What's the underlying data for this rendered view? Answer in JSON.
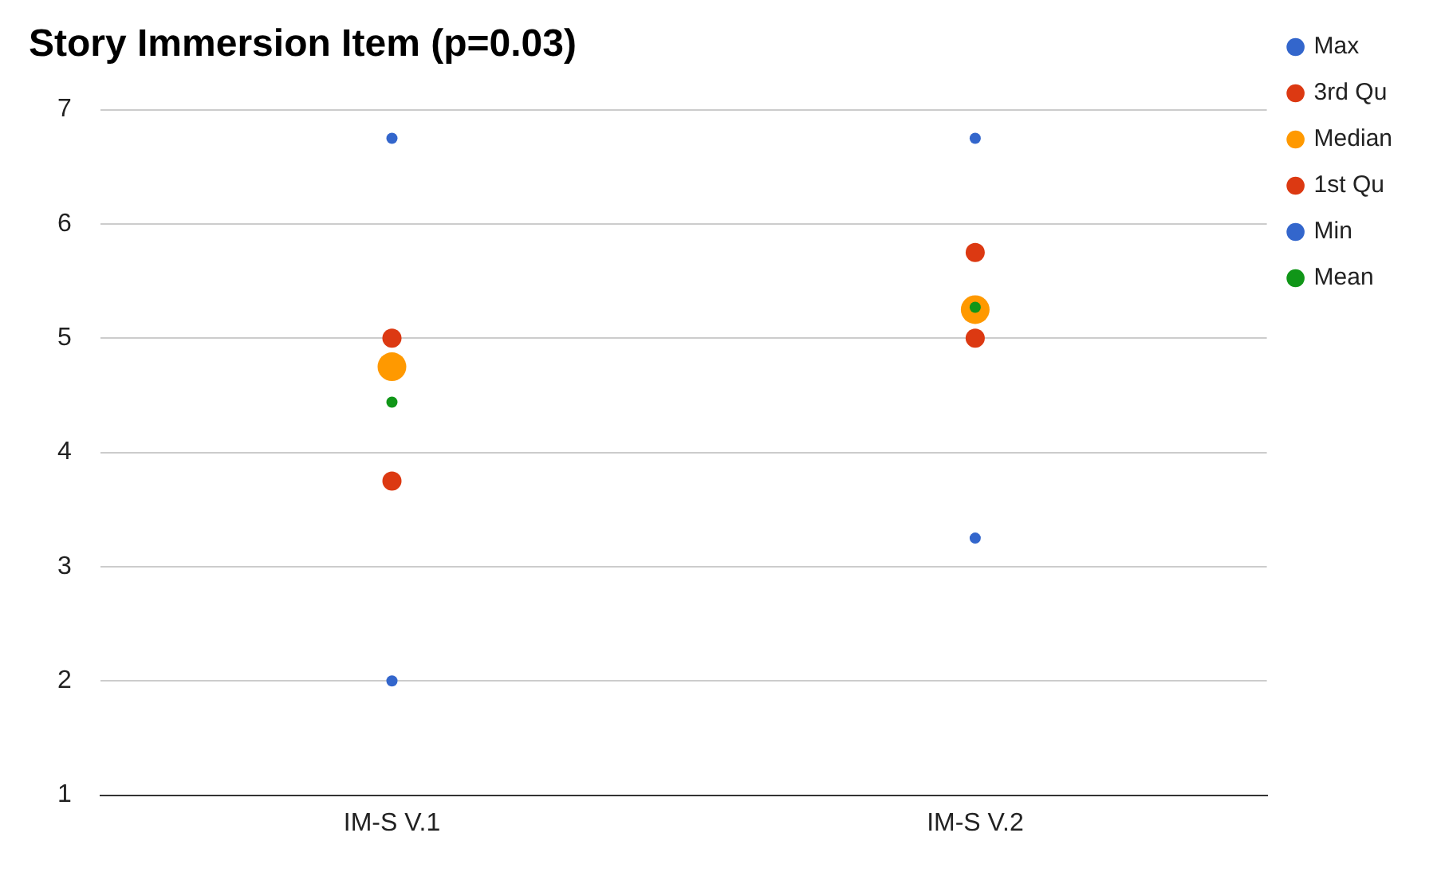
{
  "chart_data": {
    "type": "scatter",
    "title": "Story Immersion Item (p=0.03)",
    "categories": [
      "IM-S V.1",
      "IM-S V.2"
    ],
    "series": [
      {
        "name": "Max",
        "color": "#3366cc",
        "values": [
          6.75,
          6.75
        ]
      },
      {
        "name": "3rd Qu",
        "color": "#dc3912",
        "values": [
          5,
          5.75
        ]
      },
      {
        "name": "Median",
        "color": "#ff9900",
        "values": [
          4.75,
          5.25
        ]
      },
      {
        "name": "1st Qu",
        "color": "#dc3912",
        "values": [
          3.75,
          5
        ]
      },
      {
        "name": "Min",
        "color": "#3366cc",
        "values": [
          2,
          3.25
        ]
      },
      {
        "name": "Mean",
        "color": "#109618",
        "values": [
          4.44,
          5.27
        ]
      }
    ],
    "ylim": [
      1,
      7
    ],
    "yticks": [
      1,
      2,
      3,
      4,
      5,
      6,
      7
    ],
    "grid": "y",
    "legend": "right",
    "marker": "circle"
  }
}
